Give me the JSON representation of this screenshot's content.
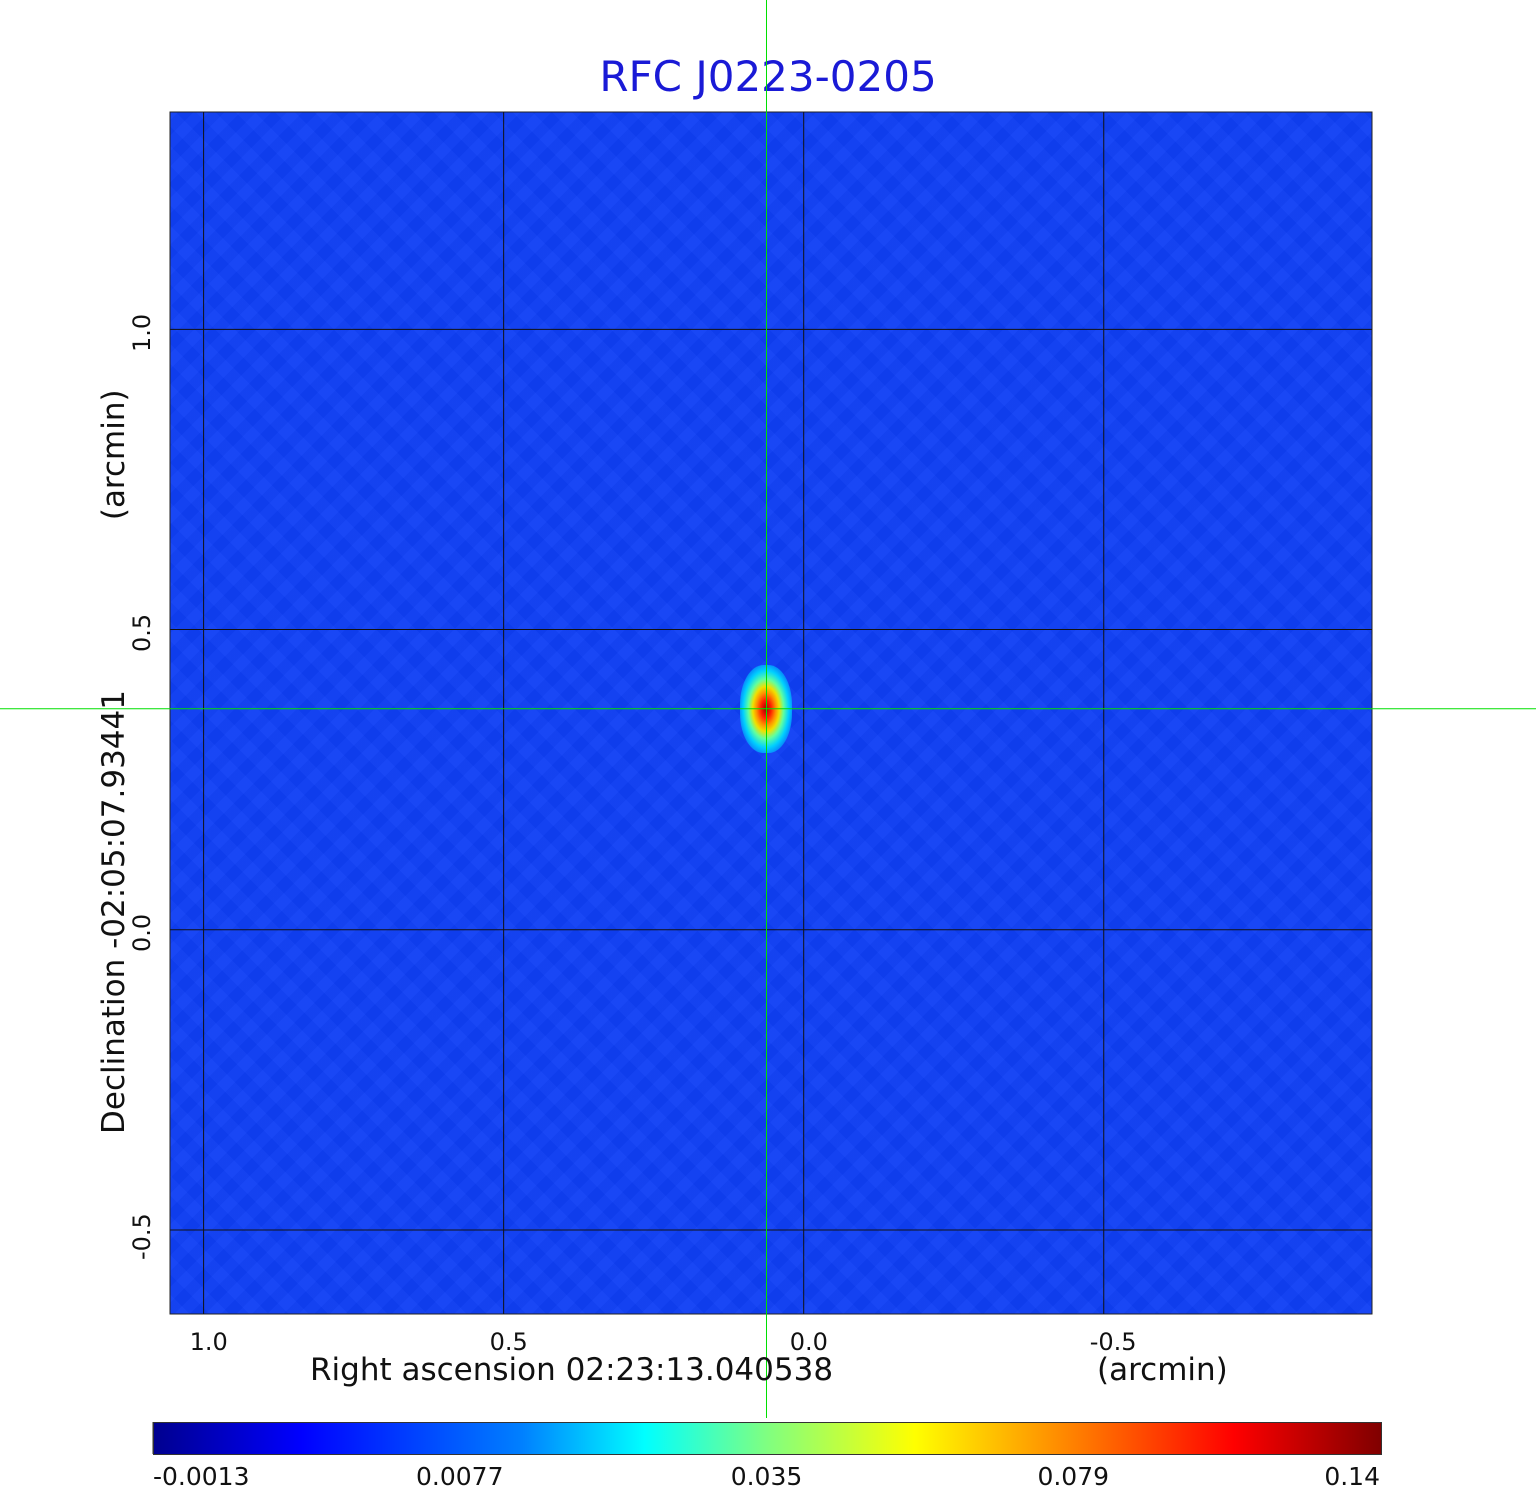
{
  "chart_data": {
    "type": "heatmap",
    "title": "RFC J0223-0205",
    "xlabel": "Right ascension  02:23:13.040538",
    "xunit": "(arcmin)",
    "ylabel": "Declination  -02:05:07.93441",
    "yunit": "(arcmin)",
    "x_ticks": [
      "1.0",
      "0.5",
      "0.0",
      "-0.5"
    ],
    "x_tick_values": [
      1.0,
      0.5,
      0.0,
      -0.5
    ],
    "y_ticks": [
      "1.0",
      "0.5",
      "0.0",
      "-0.5"
    ],
    "y_tick_values": [
      1.0,
      0.5,
      0.0,
      -0.5
    ],
    "xlim": [
      1.056,
      -0.947
    ],
    "ylim": [
      -0.64,
      1.362
    ],
    "grid": true,
    "crosshair": {
      "x": 0.062,
      "y": 0.368
    },
    "source": {
      "x": 0.062,
      "y": 0.368,
      "peak": 0.14
    },
    "colorbar": {
      "ticks": [
        "-0.0013",
        "0.0077",
        "0.035",
        "0.079",
        "0.14"
      ],
      "tick_values": [
        -0.0013,
        0.0077,
        0.035,
        0.079,
        0.14
      ],
      "colormap": "jet"
    }
  }
}
